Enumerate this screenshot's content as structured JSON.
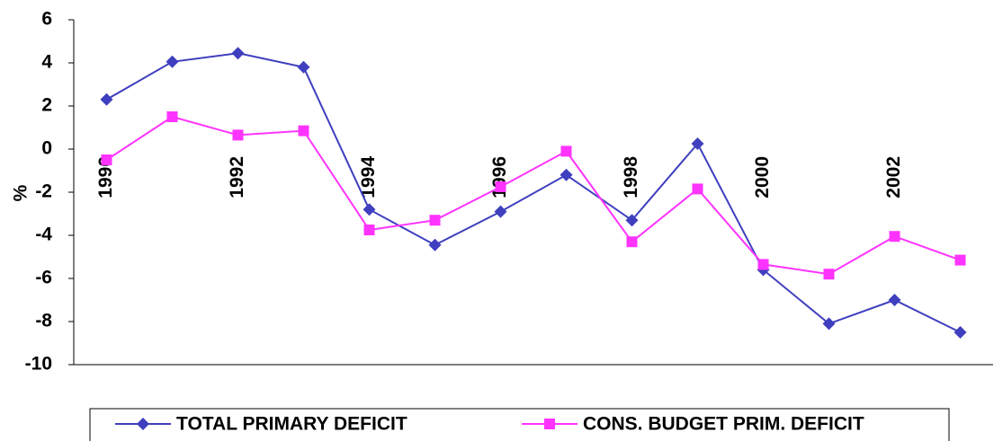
{
  "chart_data": {
    "type": "line",
    "ylabel": "%",
    "categories": [
      "1990",
      null,
      "1992",
      null,
      "1994",
      null,
      "1996",
      null,
      "1998",
      null,
      "2000",
      null,
      "2002",
      null
    ],
    "series": [
      {
        "name": "TOTAL PRIMARY DEFICIT",
        "color": "#3f3fbf",
        "marker": "diamond",
        "values": [
          2.3,
          4.05,
          4.45,
          3.8,
          -2.8,
          -4.45,
          -2.9,
          -1.2,
          -3.3,
          0.25,
          -5.6,
          -8.1,
          -7.0,
          -8.5
        ]
      },
      {
        "name": "CONS. BUDGET PRIM. DEFICIT",
        "color": "#ff33ff",
        "marker": "square",
        "values": [
          -0.5,
          1.5,
          0.65,
          0.85,
          -3.75,
          -3.3,
          -1.75,
          -0.1,
          -4.3,
          -1.85,
          -5.35,
          -5.8,
          -4.05,
          -5.15
        ]
      }
    ],
    "ylim": [
      -10,
      6
    ],
    "yticks": [
      -10,
      -8,
      -6,
      -4,
      -2,
      0,
      2,
      4,
      6
    ],
    "legend": "bottom"
  }
}
